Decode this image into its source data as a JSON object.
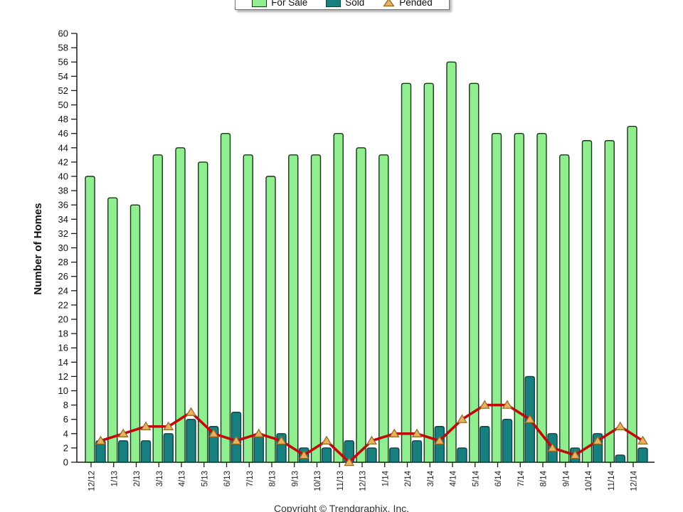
{
  "page": {
    "background": "#ffffff"
  },
  "legend": {
    "items": [
      {
        "label": "For Sale",
        "swatch": "green-bar",
        "color": "#90EE90",
        "border": "#153815"
      },
      {
        "label": "Sold",
        "swatch": "teal-bar",
        "color": "#17807E",
        "border": "#0A4544"
      },
      {
        "label": "Pended",
        "swatch": "triangle-marker",
        "color": "#C00A0A",
        "marker_fill": "#EBAF5F",
        "marker_border": "#8C691E"
      }
    ]
  },
  "footer": {
    "copyright": "Copyright © Trendgraphix, Inc."
  },
  "chart_data": {
    "type": "bar",
    "title": "",
    "xlabel": "",
    "ylabel": "Number of Homes",
    "ylim": [
      0,
      60
    ],
    "ytick_step": 2,
    "grid": false,
    "legend_position": "top-center",
    "x_tick_rotation": -90,
    "categories": [
      "12/12",
      "1/13",
      "2/13",
      "3/13",
      "4/13",
      "5/13",
      "6/13",
      "7/13",
      "8/13",
      "9/13",
      "10/13",
      "11/13",
      "12/13",
      "1/14",
      "2/14",
      "3/14",
      "4/14",
      "5/14",
      "6/14",
      "7/14",
      "8/14",
      "9/14",
      "10/14",
      "11/14",
      "12/14"
    ],
    "series": [
      {
        "name": "For Sale",
        "type": "bar",
        "color": "#90EE90",
        "border_color": "#153815",
        "values": [
          40,
          37,
          36,
          43,
          44,
          42,
          46,
          43,
          40,
          43,
          43,
          46,
          44,
          43,
          53,
          53,
          56,
          53,
          46,
          46,
          46,
          43,
          45,
          45,
          47
        ]
      },
      {
        "name": "Sold",
        "type": "bar",
        "color": "#17807E",
        "border_color": "#0A4544",
        "values": [
          3,
          3,
          3,
          4,
          6,
          5,
          7,
          4,
          4,
          2,
          2,
          3,
          2,
          2,
          3,
          5,
          2,
          5,
          6,
          12,
          4,
          2,
          4,
          1,
          2
        ]
      },
      {
        "name": "Pended",
        "type": "line",
        "color": "#C00A0A",
        "marker": "triangle",
        "marker_fill": "#EBAF5F",
        "marker_border": "#8C691E",
        "values": [
          3,
          4,
          5,
          5,
          7,
          4,
          3,
          4,
          3,
          1,
          3,
          0,
          3,
          4,
          4,
          3,
          6,
          8,
          8,
          6,
          2,
          1,
          3,
          5,
          3
        ]
      }
    ]
  }
}
